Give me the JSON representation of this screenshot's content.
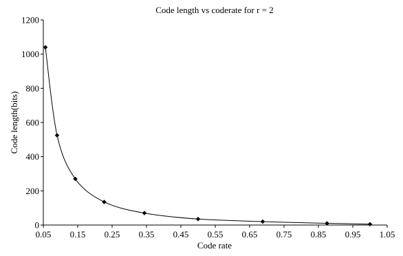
{
  "chart_data": {
    "type": "line",
    "title": "Code length vs coderate for r = 2",
    "xlabel": "Code rate",
    "ylabel": "Code length(bits)",
    "xlim": [
      0.05,
      1.05
    ],
    "ylim": [
      0,
      1200
    ],
    "xticks": [
      0.05,
      0.15,
      0.25,
      0.35,
      0.45,
      0.55,
      0.65,
      0.75,
      0.85,
      0.95,
      1.05
    ],
    "xtick_labels": [
      "0.05",
      "0.15",
      "0.25",
      "0.35",
      "0.45",
      "0.55",
      "0.65",
      "0.75",
      "0.85",
      "0.95",
      "1.05"
    ],
    "yticks": [
      0,
      200,
      400,
      600,
      800,
      1000,
      1200
    ],
    "ytick_labels": [
      "0",
      "200",
      "400",
      "600",
      "800",
      "1000",
      "1200"
    ],
    "grid": false,
    "legend": "none",
    "series": [
      {
        "x": [
          0.056,
          0.09,
          0.143,
          0.227,
          0.344,
          0.5,
          0.688,
          0.875,
          1.0
        ],
        "y": [
          1040,
          525,
          270,
          135,
          70,
          35,
          20,
          10,
          5
        ],
        "marker": "diamond",
        "smooth": true,
        "color": "#000000"
      }
    ]
  }
}
